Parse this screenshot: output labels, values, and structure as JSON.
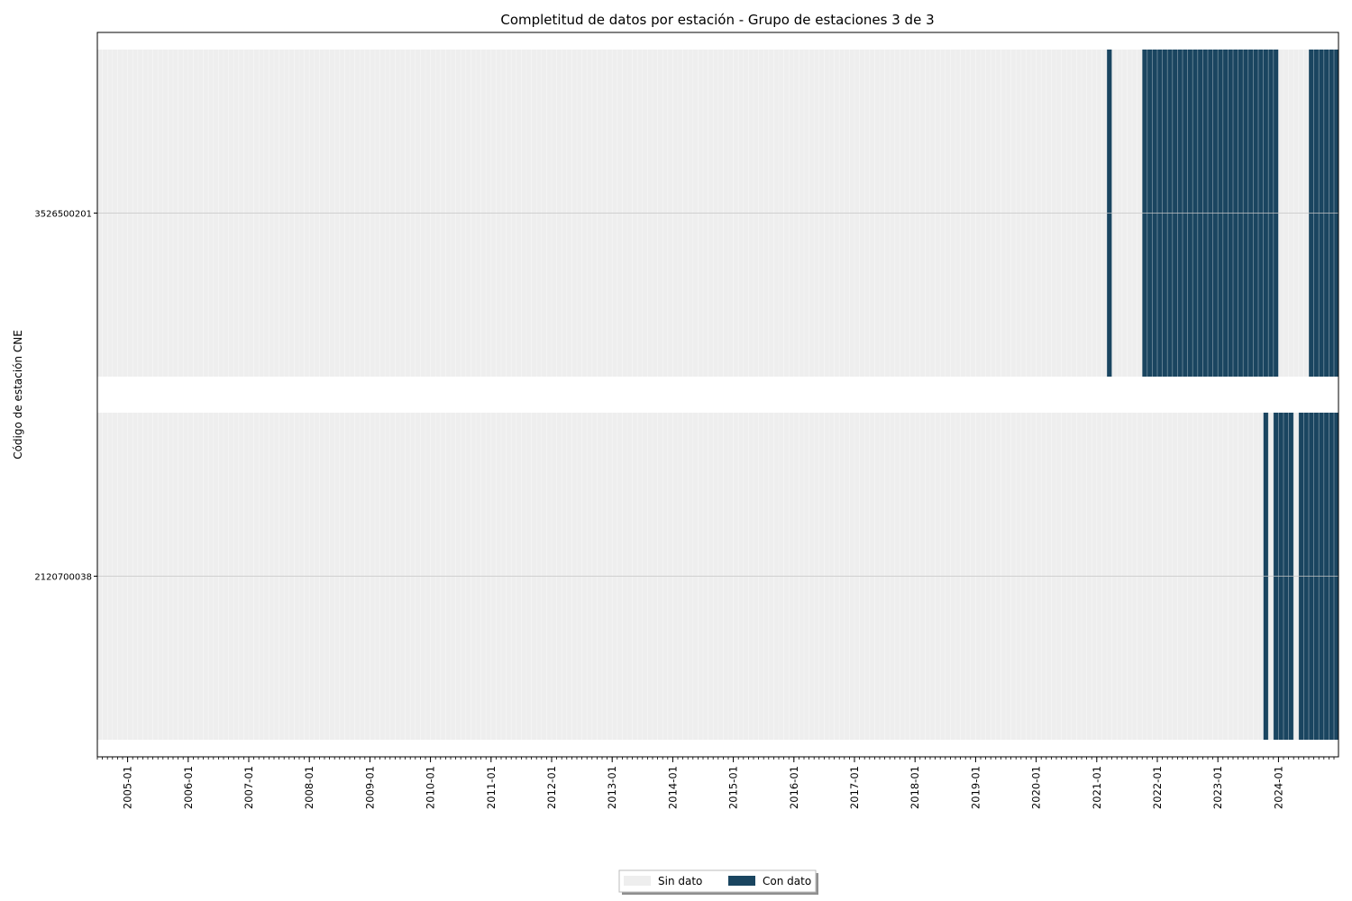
{
  "chart_data": {
    "type": "heatmap",
    "title": "Completitud de datos por estación - Grupo de estaciones 3 de 3",
    "xlabel": "",
    "ylabel": "Código de estación CNE",
    "x_axis": {
      "type": "date",
      "start": "2004-07",
      "end": "2024-12",
      "resolution": "month",
      "tick_labels": [
        "2005-01",
        "2006-01",
        "2007-01",
        "2008-01",
        "2009-01",
        "2010-01",
        "2011-01",
        "2012-01",
        "2013-01",
        "2014-01",
        "2015-01",
        "2016-01",
        "2017-01",
        "2018-01",
        "2019-01",
        "2020-01",
        "2021-01",
        "2022-01",
        "2023-01",
        "2024-01"
      ]
    },
    "stations": [
      "3526500201",
      "2120700038"
    ],
    "categories": [
      "Sin dato",
      "Con dato"
    ],
    "colors": {
      "Sin dato": "#eeeeee",
      "Con dato": "#1a4560"
    },
    "series": [
      {
        "name": "3526500201",
        "con_dato_intervals": [
          [
            "2021-03",
            "2021-03"
          ],
          [
            "2021-10",
            "2023-12"
          ],
          [
            "2024-07",
            "2024-12"
          ]
        ]
      },
      {
        "name": "2120700038",
        "con_dato_intervals": [
          [
            "2023-10",
            "2023-10"
          ],
          [
            "2023-12",
            "2024-03"
          ],
          [
            "2024-05",
            "2024-12"
          ]
        ]
      }
    ],
    "legend": {
      "position": "bottom-center",
      "entries": [
        "Sin dato",
        "Con dato"
      ]
    },
    "grid": true
  }
}
